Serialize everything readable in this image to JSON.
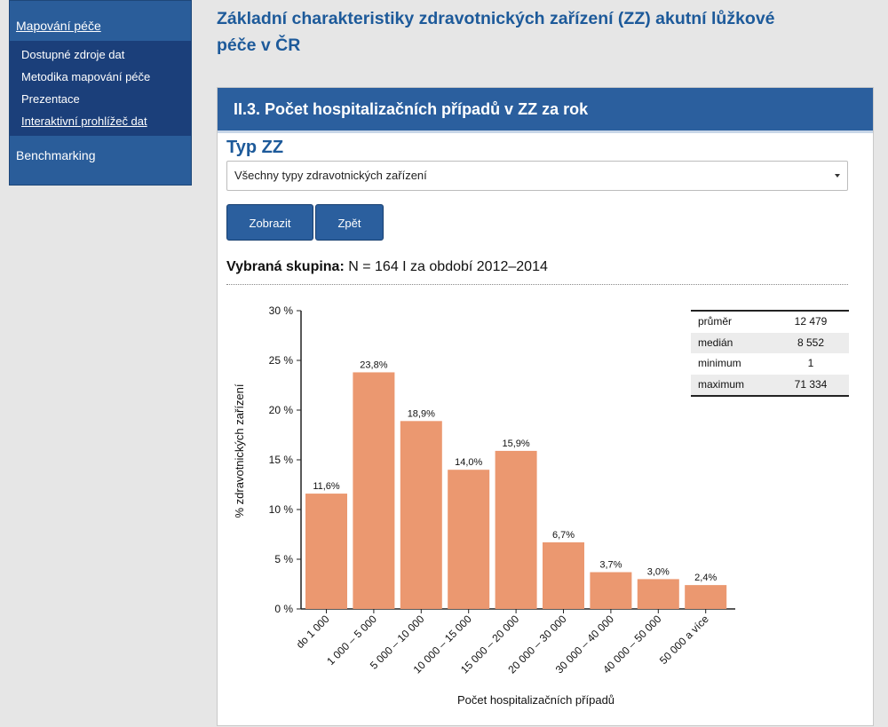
{
  "sidebar": {
    "top_link": "Mapování péče",
    "items": [
      {
        "label": "Dostupné zdroje dat"
      },
      {
        "label": "Metodika mapování péče"
      },
      {
        "label": "Prezentace"
      },
      {
        "label": "Interaktivní prohlížeč dat"
      }
    ],
    "bottom": "Benchmarking"
  },
  "page": {
    "title_line1": "Základní charakteristiky zdravotnických zařízení (ZZ) akutní lůžkové",
    "title_line2": "péče v ČR"
  },
  "panel": {
    "header": "II.3. Počet hospitalizačních případů v ZZ za rok",
    "type_label": "Typ ZZ",
    "select_value": "Všechny typy zdravotnických zařízení",
    "btn_show": "Zobrazit",
    "btn_back": "Zpět",
    "group_label": "Vybraná skupina:",
    "group_value": " N = 164 I za období 2012–2014"
  },
  "stats": [
    {
      "label": "průměr",
      "value": "12 479"
    },
    {
      "label": "medián",
      "value": "8 552"
    },
    {
      "label": "minimum",
      "value": "1"
    },
    {
      "label": "maximum",
      "value": "71 334"
    }
  ],
  "chart_data": {
    "type": "bar",
    "categories": [
      "do 1 000",
      "1 000 – 5 000",
      "5 000 – 10 000",
      "10 000 – 15 000",
      "15 000 – 20 000",
      "20 000 – 30 000",
      "30 000 – 40 000",
      "40 000 – 50 000",
      "50 000 a více"
    ],
    "values": [
      11.6,
      23.8,
      18.9,
      14.0,
      15.9,
      6.7,
      3.7,
      3.0,
      2.4
    ],
    "value_labels": [
      "11,6%",
      "23,8%",
      "18,9%",
      "14,0%",
      "15,9%",
      "6,7%",
      "3,7%",
      "3,0%",
      "2,4%"
    ],
    "yticks": [
      "0 %",
      "5 %",
      "10 %",
      "15 %",
      "20 %",
      "25 %",
      "30 %"
    ],
    "ylim": [
      0,
      30
    ],
    "xlabel": "Počet hospitalizačních případů",
    "ylabel": "% zdravotnických zařízení",
    "bar_color": "#eb9870"
  }
}
